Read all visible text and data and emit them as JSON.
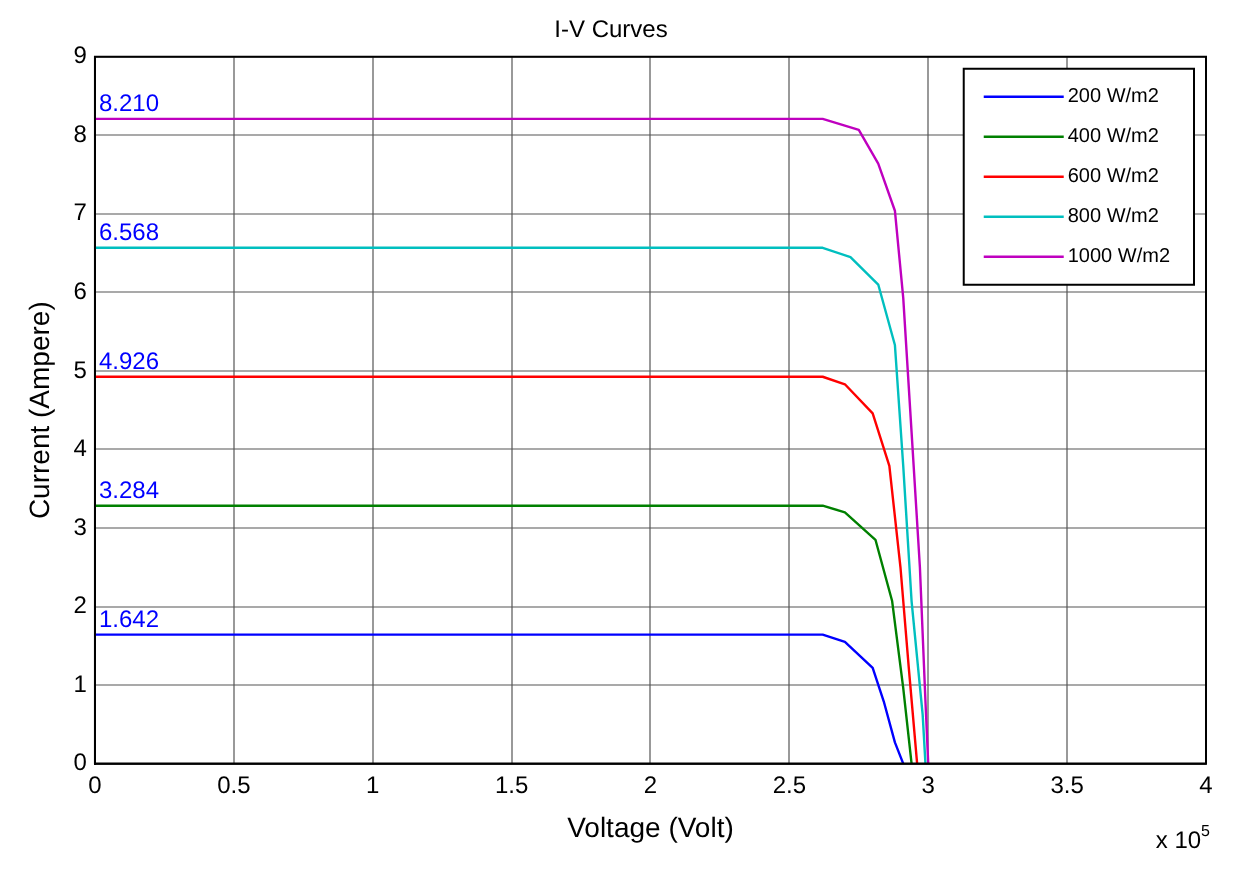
{
  "chart_data": {
    "type": "line",
    "title": "I-V Curves",
    "xlabel": "Voltage (Volt)",
    "ylabel": "Current (Ampere)",
    "xlim": [
      0,
      4
    ],
    "xticks": [
      0,
      0.5,
      1,
      1.5,
      2,
      2.5,
      3,
      3.5,
      4
    ],
    "ylim": [
      0,
      9
    ],
    "yticks": [
      0,
      1,
      2,
      3,
      4,
      5,
      6,
      7,
      8,
      9
    ],
    "grid": true,
    "legend": "top right",
    "marker": "none",
    "line_style": "solid",
    "series": [
      {
        "name": "200 W/m2",
        "color": "#0000ff",
        "x": [
          0,
          2.62,
          2.7,
          2.8,
          2.84,
          2.88,
          2.91
        ],
        "values": [
          1.642,
          1.642,
          1.55,
          1.22,
          0.79,
          0.27,
          0
        ]
      },
      {
        "name": "400 W/m2",
        "color": "#008000",
        "x": [
          0,
          2.62,
          2.7,
          2.81,
          2.87,
          2.91,
          2.94
        ],
        "values": [
          3.284,
          3.284,
          3.2,
          2.85,
          2.07,
          0.96,
          0
        ]
      },
      {
        "name": "600 W/m2",
        "color": "#ff0000",
        "x": [
          0,
          2.62,
          2.7,
          2.8,
          2.86,
          2.9,
          2.93,
          2.96
        ],
        "values": [
          4.926,
          4.926,
          4.83,
          4.46,
          3.79,
          2.5,
          1.22,
          0
        ]
      },
      {
        "name": "800 W/m2",
        "color": "#00bfbf",
        "x": [
          0,
          2.62,
          2.72,
          2.82,
          2.88,
          2.91,
          2.94,
          2.98,
          2.99
        ],
        "values": [
          6.568,
          6.568,
          6.45,
          6.1,
          5.33,
          3.79,
          2.07,
          0.62,
          0
        ]
      },
      {
        "name": "1000 W/m2",
        "color": "#bf00bf",
        "x": [
          0,
          2.62,
          2.75,
          2.82,
          2.88,
          2.91,
          2.94,
          2.97,
          2.99,
          3.0
        ],
        "values": [
          8.21,
          8.21,
          8.07,
          7.64,
          7.04,
          5.93,
          4.22,
          2.5,
          0.79,
          0
        ]
      }
    ],
    "annotations": [
      {
        "text": "1.642",
        "y": 1.642
      },
      {
        "text": "3.284",
        "y": 3.284
      },
      {
        "text": "4.926",
        "y": 4.926
      },
      {
        "text": "6.568",
        "y": 6.568
      },
      {
        "text": "8.210",
        "y": 8.21
      },
      "x 10$^{5}$"
    ]
  }
}
